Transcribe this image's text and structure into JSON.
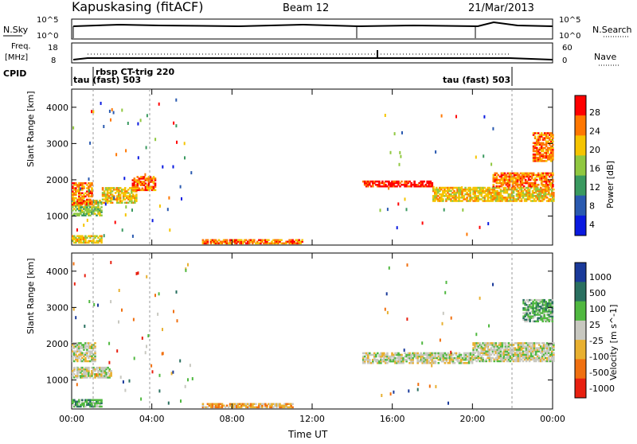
{
  "header": {
    "station": "Kapuskasing (fitACF)",
    "beam": "Beam 12",
    "date": "21/Mar/2013"
  },
  "panels": {
    "nsky": {
      "label": "N.Sky",
      "ticks": [
        "10^5",
        "10^0"
      ],
      "right_ticks": [
        "10^5",
        "10^0"
      ],
      "right_label": "N.Search"
    },
    "freq": {
      "label_line1": "Freq.",
      "label_line2": "[MHz]",
      "ticks": [
        "18",
        "8"
      ],
      "right_ticks": [
        "60",
        "0"
      ],
      "right_label": "Nave"
    },
    "cpid": {
      "label": "CPID",
      "annotations": [
        "tau (fast) 503",
        "rbsp CT-trig 220",
        "tau (fast) 503"
      ]
    }
  },
  "chart_data": [
    {
      "type": "heatmap",
      "name": "power",
      "ylabel": "Slant Range [km]",
      "xlabel": "Time UT",
      "xlim": [
        0,
        24
      ],
      "ylim": [
        200,
        4500
      ],
      "yticks": [
        1000,
        2000,
        3000,
        4000
      ],
      "xticklabels": [
        "00:00",
        "04:00",
        "08:00",
        "12:00",
        "16:00",
        "20:00",
        "00:00"
      ],
      "colorbar": {
        "label": "Power [dB]",
        "ticks": [
          "28",
          "24",
          "20",
          "16",
          "12",
          "8",
          "4"
        ],
        "colors": [
          "#ff0000",
          "#ff7700",
          "#f5c400",
          "#90c840",
          "#3a9a60",
          "#2a5ab0",
          "#0a1ae0"
        ]
      },
      "regions": [
        {
          "t0": 0.0,
          "t1": 1.5,
          "r0": 1000,
          "r1": 1450,
          "level": 3
        },
        {
          "t0": 1.5,
          "t1": 3.2,
          "r0": 1350,
          "r1": 1800,
          "level": 4
        },
        {
          "t0": 3.0,
          "t1": 4.2,
          "r0": 1700,
          "r1": 2100,
          "level": 5
        },
        {
          "t0": 0.0,
          "t1": 1.0,
          "r0": 1300,
          "r1": 1900,
          "level": 5
        },
        {
          "t0": 0.0,
          "t1": 1.5,
          "r0": 250,
          "r1": 450,
          "level": 4
        },
        {
          "t0": 6.5,
          "t1": 11.5,
          "r0": 230,
          "r1": 350,
          "level": 5
        },
        {
          "t0": 14.5,
          "t1": 18.0,
          "r0": 1800,
          "r1": 1950,
          "level": 6
        },
        {
          "t0": 18.0,
          "t1": 24.0,
          "r0": 1400,
          "r1": 1800,
          "level": 4
        },
        {
          "t0": 21.0,
          "t1": 24.0,
          "r0": 1800,
          "r1": 2200,
          "level": 5
        },
        {
          "t0": 23.0,
          "t1": 24.0,
          "r0": 2500,
          "r1": 3300,
          "level": 5
        }
      ]
    },
    {
      "type": "heatmap",
      "name": "velocity",
      "ylabel": "Slant Range [km]",
      "xlabel": "Time UT",
      "xlim": [
        0,
        24
      ],
      "ylim": [
        200,
        4500
      ],
      "yticks": [
        1000,
        2000,
        3000,
        4000
      ],
      "xticklabels": [
        "00:00",
        "04:00",
        "08:00",
        "12:00",
        "16:00",
        "20:00",
        "00:00"
      ],
      "colorbar": {
        "label": "Velocity [m s^-1]",
        "ticks": [
          "1000",
          "500",
          "100",
          "25",
          "-25",
          "-100",
          "-500",
          "-1000"
        ],
        "colors": [
          "#1a3a9a",
          "#2a7060",
          "#50b840",
          "#c8c8c0",
          "#e8b030",
          "#f07010",
          "#e82010"
        ]
      },
      "regions": [
        {
          "t0": 0.0,
          "t1": 2.0,
          "r0": 1050,
          "r1": 1350,
          "level": 3
        },
        {
          "t0": 0.0,
          "t1": 1.2,
          "r0": 1500,
          "r1": 2000,
          "level": 3
        },
        {
          "t0": 0.0,
          "t1": 1.5,
          "r0": 250,
          "r1": 450,
          "level": 4
        },
        {
          "t0": 6.5,
          "t1": 11.0,
          "r0": 230,
          "r1": 350,
          "level": 2
        },
        {
          "t0": 14.5,
          "t1": 20.0,
          "r0": 1450,
          "r1": 1750,
          "level": 3
        },
        {
          "t0": 20.0,
          "t1": 24.0,
          "r0": 1500,
          "r1": 2000,
          "level": 3
        },
        {
          "t0": 22.5,
          "t1": 24.0,
          "r0": 2600,
          "r1": 3200,
          "level": 4
        }
      ]
    }
  ]
}
